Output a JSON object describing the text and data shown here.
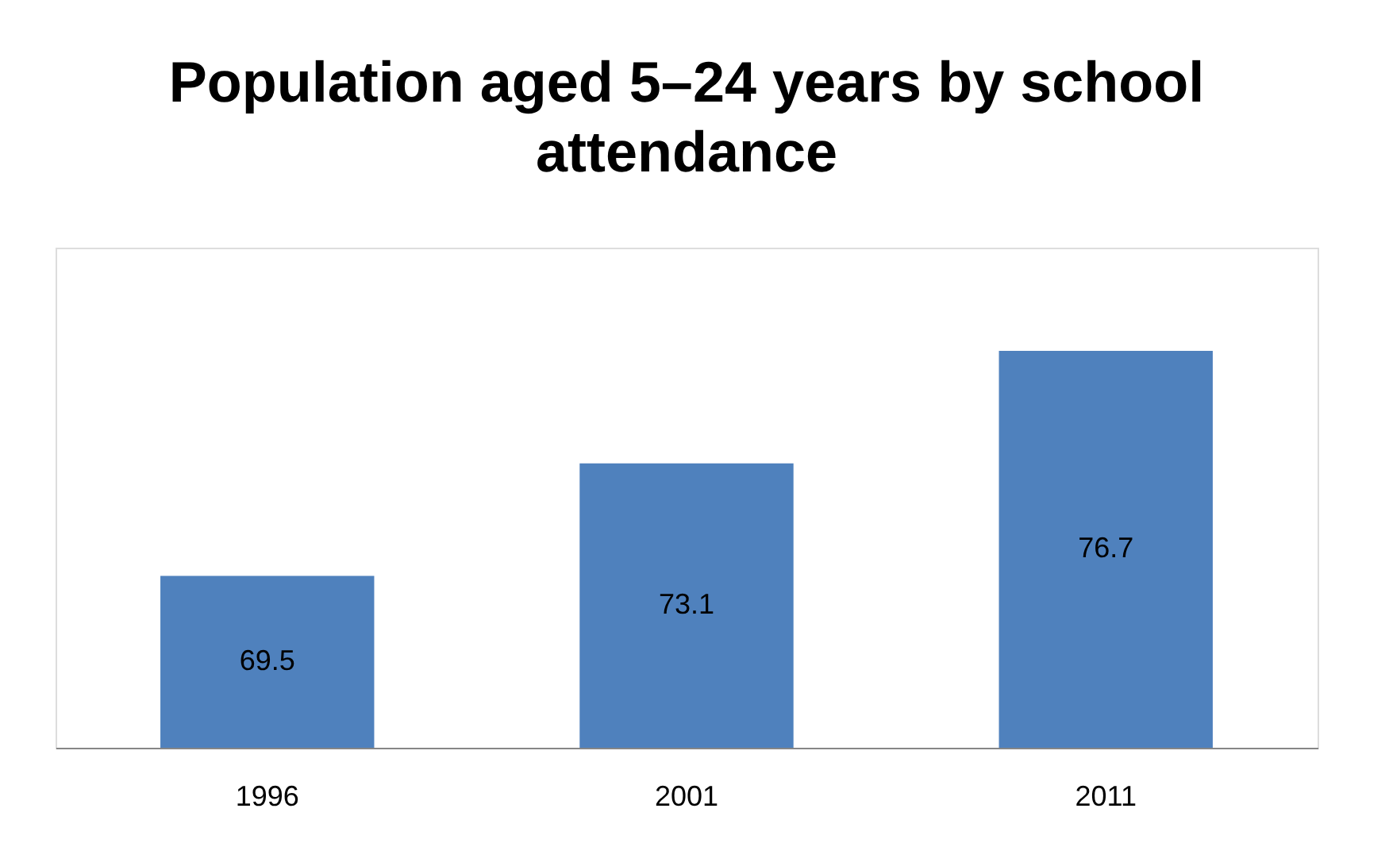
{
  "chart_data": {
    "type": "bar",
    "title": [
      "Population aged 5–24 years by school",
      "attendance"
    ],
    "categories": [
      "1996",
      "2001",
      "2011"
    ],
    "values": [
      69.5,
      73.1,
      76.7
    ],
    "color": "#4f81bd",
    "ylim": [
      64,
      80
    ],
    "tick_labels": "x",
    "data_labels": true,
    "grid": false
  }
}
